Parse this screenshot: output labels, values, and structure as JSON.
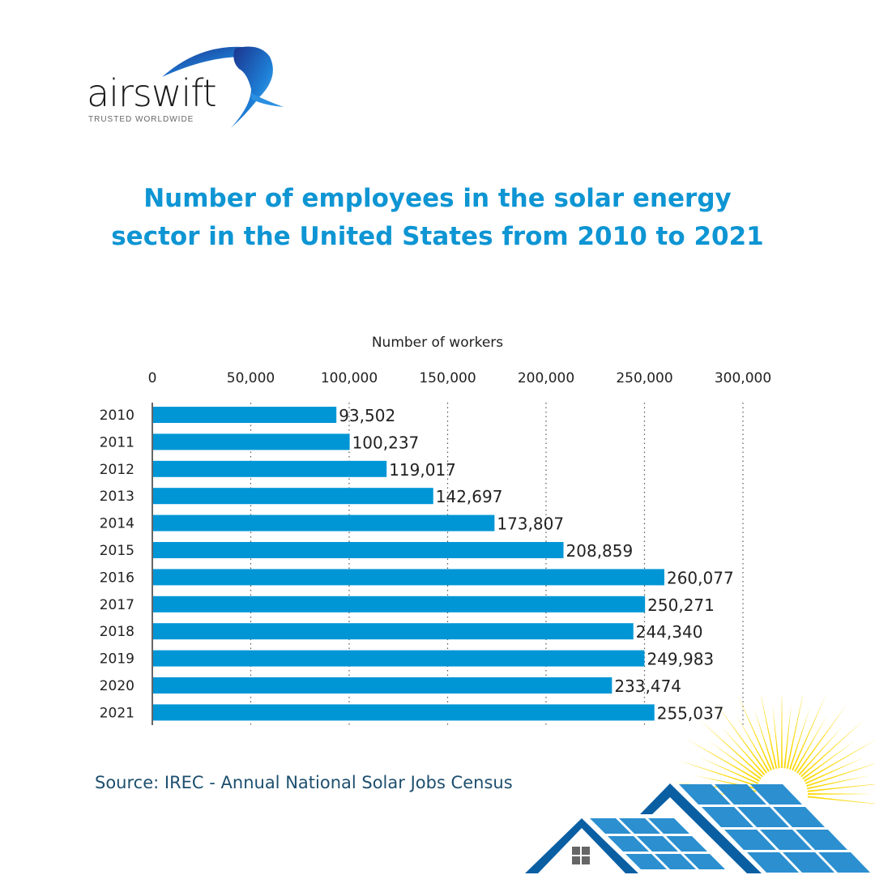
{
  "logo": {
    "name": "airswift",
    "tagline": "TRUSTED WORLDWIDE"
  },
  "title_lines": [
    "Number of employees in the solar energy",
    "sector in the United States from 2010 to 2021"
  ],
  "source": "Source: IREC - Annual National Solar Jobs Census",
  "colors": {
    "bar": "#0096d6",
    "title": "#0e95d3",
    "source": "#1d4f6e"
  },
  "chart_data": {
    "type": "bar",
    "orientation": "horizontal",
    "title": "Number of employees in the solar energy sector in the United States from 2010 to 2021",
    "xlabel": "Number of workers",
    "ylabel": "",
    "xlim": [
      0,
      300000
    ],
    "x_ticks": [
      0,
      50000,
      100000,
      150000,
      200000,
      250000,
      300000
    ],
    "x_tick_labels": [
      "0",
      "50,000",
      "100,000",
      "150,000",
      "200,000",
      "250,000",
      "300,000"
    ],
    "categories": [
      "2010",
      "2011",
      "2012",
      "2013",
      "2014",
      "2015",
      "2016",
      "2017",
      "2018",
      "2019",
      "2020",
      "2021"
    ],
    "values": [
      93502,
      100237,
      119017,
      142697,
      173807,
      208859,
      260077,
      250271,
      244340,
      249983,
      233474,
      255037
    ],
    "value_labels": [
      "93,502",
      "100,237",
      "119,017",
      "142,697",
      "173,807",
      "208,859",
      "260,077",
      "250,271",
      "244,340",
      "249,983",
      "233,474",
      "255,037"
    ],
    "grid": "vertical dotted",
    "legend": "none"
  }
}
